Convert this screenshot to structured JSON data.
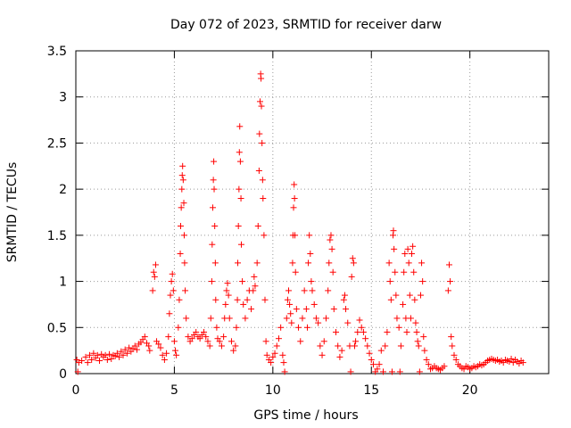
{
  "chart_data": {
    "type": "scatter",
    "title": "Day 072 of 2023, SRMTID for receiver darw",
    "xlabel": "GPS time / hours",
    "ylabel": "SRMTID / TECUs",
    "xlim": [
      0,
      24
    ],
    "ylim": [
      0,
      3.5
    ],
    "x_ticks": [
      "0",
      "5",
      "10",
      "15",
      "20"
    ],
    "y_ticks": [
      "0",
      "0.5",
      "1",
      "1.5",
      "2",
      "2.5",
      "3",
      "3.5"
    ],
    "grid": true,
    "marker": "+",
    "color": "#ff0000",
    "series": [
      {
        "name": "SRMTID",
        "points": [
          [
            0.05,
            0.15
          ],
          [
            0.1,
            0.02
          ],
          [
            0.15,
            0.12
          ],
          [
            0.3,
            0.14
          ],
          [
            0.5,
            0.18
          ],
          [
            0.6,
            0.12
          ],
          [
            0.7,
            0.2
          ],
          [
            0.8,
            0.15
          ],
          [
            0.9,
            0.22
          ],
          [
            1.0,
            0.17
          ],
          [
            1.1,
            0.2
          ],
          [
            1.2,
            0.14
          ],
          [
            1.3,
            0.21
          ],
          [
            1.4,
            0.18
          ],
          [
            1.5,
            0.2
          ],
          [
            1.6,
            0.15
          ],
          [
            1.7,
            0.21
          ],
          [
            1.8,
            0.16
          ],
          [
            1.9,
            0.2
          ],
          [
            2.0,
            0.19
          ],
          [
            2.1,
            0.22
          ],
          [
            2.2,
            0.18
          ],
          [
            2.3,
            0.24
          ],
          [
            2.4,
            0.2
          ],
          [
            2.5,
            0.26
          ],
          [
            2.6,
            0.22
          ],
          [
            2.7,
            0.28
          ],
          [
            2.8,
            0.24
          ],
          [
            2.9,
            0.27
          ],
          [
            3.0,
            0.3
          ],
          [
            3.1,
            0.26
          ],
          [
            3.2,
            0.32
          ],
          [
            3.3,
            0.34
          ],
          [
            3.4,
            0.37
          ],
          [
            3.5,
            0.4
          ],
          [
            3.6,
            0.33
          ],
          [
            3.7,
            0.3
          ],
          [
            3.75,
            0.25
          ],
          [
            3.9,
            0.9
          ],
          [
            3.95,
            1.1
          ],
          [
            4.0,
            1.05
          ],
          [
            4.05,
            1.18
          ],
          [
            4.1,
            0.35
          ],
          [
            4.2,
            0.32
          ],
          [
            4.3,
            0.28
          ],
          [
            4.4,
            0.2
          ],
          [
            4.5,
            0.15
          ],
          [
            4.6,
            0.22
          ],
          [
            4.7,
            0.4
          ],
          [
            4.75,
            0.65
          ],
          [
            4.8,
            0.85
          ],
          [
            4.85,
            1.0
          ],
          [
            4.9,
            1.08
          ],
          [
            4.95,
            0.9
          ],
          [
            5.0,
            0.35
          ],
          [
            5.05,
            0.25
          ],
          [
            5.1,
            0.2
          ],
          [
            5.2,
            0.5
          ],
          [
            5.25,
            0.8
          ],
          [
            5.3,
            1.3
          ],
          [
            5.32,
            1.6
          ],
          [
            5.35,
            1.8
          ],
          [
            5.38,
            2.0
          ],
          [
            5.4,
            2.15
          ],
          [
            5.42,
            2.25
          ],
          [
            5.45,
            2.1
          ],
          [
            5.48,
            1.85
          ],
          [
            5.5,
            1.5
          ],
          [
            5.52,
            1.2
          ],
          [
            5.55,
            0.9
          ],
          [
            5.6,
            0.6
          ],
          [
            5.7,
            0.4
          ],
          [
            5.8,
            0.35
          ],
          [
            5.9,
            0.38
          ],
          [
            6.0,
            0.42
          ],
          [
            6.1,
            0.45
          ],
          [
            6.2,
            0.4
          ],
          [
            6.3,
            0.38
          ],
          [
            6.4,
            0.42
          ],
          [
            6.5,
            0.45
          ],
          [
            6.6,
            0.4
          ],
          [
            6.7,
            0.35
          ],
          [
            6.8,
            0.3
          ],
          [
            6.85,
            0.6
          ],
          [
            6.9,
            1.0
          ],
          [
            6.92,
            1.4
          ],
          [
            6.95,
            1.8
          ],
          [
            6.98,
            2.1
          ],
          [
            7.0,
            2.3
          ],
          [
            7.02,
            2.0
          ],
          [
            7.05,
            1.6
          ],
          [
            7.08,
            1.2
          ],
          [
            7.1,
            0.8
          ],
          [
            7.15,
            0.5
          ],
          [
            7.2,
            0.38
          ],
          [
            7.3,
            0.35
          ],
          [
            7.4,
            0.3
          ],
          [
            7.5,
            0.4
          ],
          [
            7.55,
            0.6
          ],
          [
            7.6,
            0.75
          ],
          [
            7.65,
            0.9
          ],
          [
            7.7,
            0.98
          ],
          [
            7.75,
            0.85
          ],
          [
            7.8,
            0.6
          ],
          [
            7.9,
            0.35
          ],
          [
            8.0,
            0.25
          ],
          [
            8.1,
            0.3
          ],
          [
            8.15,
            0.5
          ],
          [
            8.2,
            0.8
          ],
          [
            8.22,
            1.2
          ],
          [
            8.25,
            1.6
          ],
          [
            8.28,
            2.0
          ],
          [
            8.3,
            2.4
          ],
          [
            8.32,
            2.68
          ],
          [
            8.35,
            2.3
          ],
          [
            8.38,
            1.9
          ],
          [
            8.4,
            1.4
          ],
          [
            8.45,
            1.0
          ],
          [
            8.5,
            0.75
          ],
          [
            8.6,
            0.6
          ],
          [
            8.7,
            0.8
          ],
          [
            8.8,
            0.9
          ],
          [
            8.9,
            0.7
          ],
          [
            9.0,
            0.9
          ],
          [
            9.05,
            1.05
          ],
          [
            9.1,
            0.95
          ],
          [
            9.2,
            1.2
          ],
          [
            9.25,
            1.6
          ],
          [
            9.3,
            2.2
          ],
          [
            9.32,
            2.6
          ],
          [
            9.35,
            2.95
          ],
          [
            9.38,
            3.25
          ],
          [
            9.4,
            3.2
          ],
          [
            9.42,
            2.9
          ],
          [
            9.45,
            2.5
          ],
          [
            9.48,
            2.1
          ],
          [
            9.5,
            1.9
          ],
          [
            9.55,
            1.5
          ],
          [
            9.6,
            0.8
          ],
          [
            9.65,
            0.35
          ],
          [
            9.7,
            0.2
          ],
          [
            9.8,
            0.15
          ],
          [
            9.9,
            0.12
          ],
          [
            10.0,
            0.18
          ],
          [
            10.1,
            0.22
          ],
          [
            10.2,
            0.3
          ],
          [
            10.3,
            0.38
          ],
          [
            10.4,
            0.5
          ],
          [
            10.5,
            0.2
          ],
          [
            10.55,
            0.12
          ],
          [
            10.6,
            0.02
          ],
          [
            10.7,
            0.6
          ],
          [
            10.75,
            0.8
          ],
          [
            10.8,
            0.9
          ],
          [
            10.85,
            0.75
          ],
          [
            10.9,
            0.65
          ],
          [
            10.95,
            0.55
          ],
          [
            11.0,
            1.2
          ],
          [
            11.02,
            1.5
          ],
          [
            11.05,
            1.8
          ],
          [
            11.08,
            2.05
          ],
          [
            11.1,
            1.9
          ],
          [
            11.12,
            1.5
          ],
          [
            11.15,
            1.1
          ],
          [
            11.2,
            0.7
          ],
          [
            11.3,
            0.5
          ],
          [
            11.4,
            0.35
          ],
          [
            11.5,
            0.6
          ],
          [
            11.6,
            0.9
          ],
          [
            11.7,
            0.7
          ],
          [
            11.75,
            0.5
          ],
          [
            11.8,
            1.2
          ],
          [
            11.85,
            1.5
          ],
          [
            11.9,
            1.3
          ],
          [
            11.95,
            1.0
          ],
          [
            12.0,
            0.9
          ],
          [
            12.1,
            0.75
          ],
          [
            12.2,
            0.6
          ],
          [
            12.3,
            0.55
          ],
          [
            12.4,
            0.3
          ],
          [
            12.5,
            0.2
          ],
          [
            12.6,
            0.35
          ],
          [
            12.7,
            0.6
          ],
          [
            12.8,
            0.9
          ],
          [
            12.85,
            1.2
          ],
          [
            12.9,
            1.45
          ],
          [
            12.95,
            1.5
          ],
          [
            13.0,
            1.35
          ],
          [
            13.05,
            1.1
          ],
          [
            13.1,
            0.7
          ],
          [
            13.2,
            0.45
          ],
          [
            13.3,
            0.3
          ],
          [
            13.4,
            0.18
          ],
          [
            13.5,
            0.25
          ],
          [
            13.6,
            0.8
          ],
          [
            13.65,
            0.85
          ],
          [
            13.7,
            0.7
          ],
          [
            13.8,
            0.55
          ],
          [
            13.9,
            0.3
          ],
          [
            13.95,
            0.02
          ],
          [
            14.0,
            1.05
          ],
          [
            14.05,
            1.25
          ],
          [
            14.1,
            1.2
          ],
          [
            14.15,
            0.3
          ],
          [
            14.2,
            0.35
          ],
          [
            14.3,
            0.45
          ],
          [
            14.4,
            0.58
          ],
          [
            14.5,
            0.5
          ],
          [
            14.6,
            0.45
          ],
          [
            14.7,
            0.38
          ],
          [
            14.8,
            0.3
          ],
          [
            14.9,
            0.22
          ],
          [
            15.0,
            0.15
          ],
          [
            15.1,
            0.1
          ],
          [
            15.2,
            0.02
          ],
          [
            15.3,
            0.05
          ],
          [
            15.4,
            0.1
          ],
          [
            15.5,
            0.25
          ],
          [
            15.6,
            0.02
          ],
          [
            15.7,
            0.3
          ],
          [
            15.8,
            0.45
          ],
          [
            15.9,
            1.2
          ],
          [
            15.95,
            1.0
          ],
          [
            16.0,
            0.8
          ],
          [
            16.05,
            0.02
          ],
          [
            16.1,
            1.5
          ],
          [
            16.12,
            1.55
          ],
          [
            16.15,
            1.35
          ],
          [
            16.2,
            1.1
          ],
          [
            16.25,
            0.85
          ],
          [
            16.3,
            0.6
          ],
          [
            16.4,
            0.5
          ],
          [
            16.45,
            0.02
          ],
          [
            16.5,
            0.3
          ],
          [
            16.6,
            0.75
          ],
          [
            16.65,
            1.1
          ],
          [
            16.7,
            1.3
          ],
          [
            16.75,
            0.6
          ],
          [
            16.8,
            0.45
          ],
          [
            16.85,
            1.35
          ],
          [
            16.9,
            1.2
          ],
          [
            16.95,
            0.85
          ],
          [
            17.0,
            0.6
          ],
          [
            17.05,
            1.3
          ],
          [
            17.1,
            1.38
          ],
          [
            17.15,
            1.1
          ],
          [
            17.2,
            0.8
          ],
          [
            17.25,
            0.55
          ],
          [
            17.3,
            0.45
          ],
          [
            17.35,
            0.35
          ],
          [
            17.4,
            0.3
          ],
          [
            17.45,
            0.02
          ],
          [
            17.5,
            0.85
          ],
          [
            17.55,
            1.2
          ],
          [
            17.6,
            1.0
          ],
          [
            17.65,
            0.4
          ],
          [
            17.7,
            0.25
          ],
          [
            17.8,
            0.15
          ],
          [
            17.9,
            0.1
          ],
          [
            18.0,
            0.05
          ],
          [
            18.1,
            0.06
          ],
          [
            18.2,
            0.08
          ],
          [
            18.3,
            0.06
          ],
          [
            18.4,
            0.05
          ],
          [
            18.5,
            0.04
          ],
          [
            18.6,
            0.06
          ],
          [
            18.7,
            0.08
          ],
          [
            18.9,
            0.9
          ],
          [
            18.95,
            1.18
          ],
          [
            19.0,
            1.0
          ],
          [
            19.05,
            0.4
          ],
          [
            19.1,
            0.3
          ],
          [
            19.2,
            0.2
          ],
          [
            19.3,
            0.15
          ],
          [
            19.4,
            0.1
          ],
          [
            19.5,
            0.08
          ],
          [
            19.6,
            0.06
          ],
          [
            19.7,
            0.05
          ],
          [
            19.8,
            0.08
          ],
          [
            19.9,
            0.07
          ],
          [
            20.0,
            0.05
          ],
          [
            20.1,
            0.06
          ],
          [
            20.2,
            0.08
          ],
          [
            20.3,
            0.07
          ],
          [
            20.4,
            0.08
          ],
          [
            20.5,
            0.1
          ],
          [
            20.6,
            0.09
          ],
          [
            20.7,
            0.1
          ],
          [
            20.8,
            0.12
          ],
          [
            20.9,
            0.14
          ],
          [
            21.0,
            0.15
          ],
          [
            21.1,
            0.16
          ],
          [
            21.2,
            0.15
          ],
          [
            21.3,
            0.14
          ],
          [
            21.4,
            0.15
          ],
          [
            21.5,
            0.13
          ],
          [
            21.6,
            0.14
          ],
          [
            21.7,
            0.12
          ],
          [
            21.8,
            0.15
          ],
          [
            21.9,
            0.14
          ],
          [
            22.0,
            0.13
          ],
          [
            22.1,
            0.16
          ],
          [
            22.2,
            0.12
          ],
          [
            22.3,
            0.15
          ],
          [
            22.4,
            0.13
          ],
          [
            22.5,
            0.11
          ],
          [
            22.6,
            0.14
          ],
          [
            22.7,
            0.12
          ]
        ]
      }
    ]
  }
}
